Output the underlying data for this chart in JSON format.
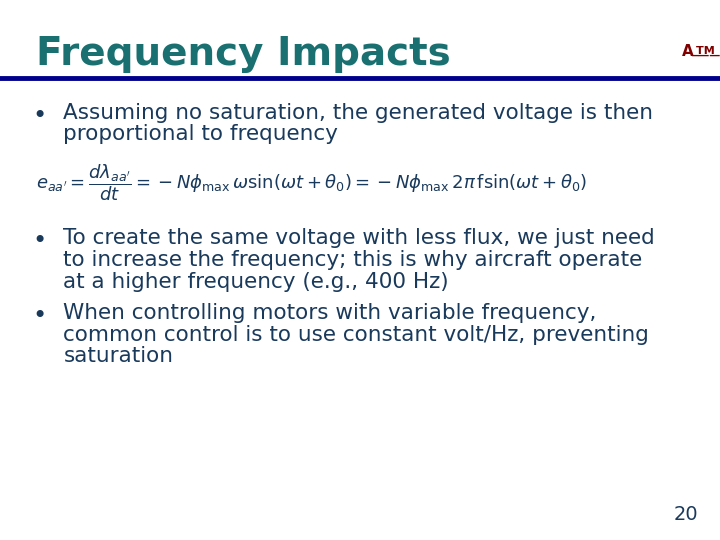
{
  "title": "Frequency Impacts",
  "title_color": "#1a7070",
  "title_fontsize": 28,
  "title_bold": true,
  "header_line_color": "#00008B",
  "bg_color": "#FFFFFF",
  "text_color": "#1a3a5c",
  "text_fontsize": 15.5,
  "bullet1_line1": "Assuming no saturation, the generated voltage is then",
  "bullet1_line2": "proportional to frequency",
  "bullet2_line1": "To create the same voltage with less flux, we just need",
  "bullet2_line2": "to increase the frequency; this is why aircraft operate",
  "bullet2_line3": "at a higher frequency (e.g., 400 Hz)",
  "bullet3_line1": "When controlling motors with variable frequency,",
  "bullet3_line2": "common control is to use constant volt/Hz, preventing",
  "bullet3_line3": "saturation",
  "page_number": "20",
  "page_number_color": "#1a3a5c",
  "logo_color": "#800000"
}
